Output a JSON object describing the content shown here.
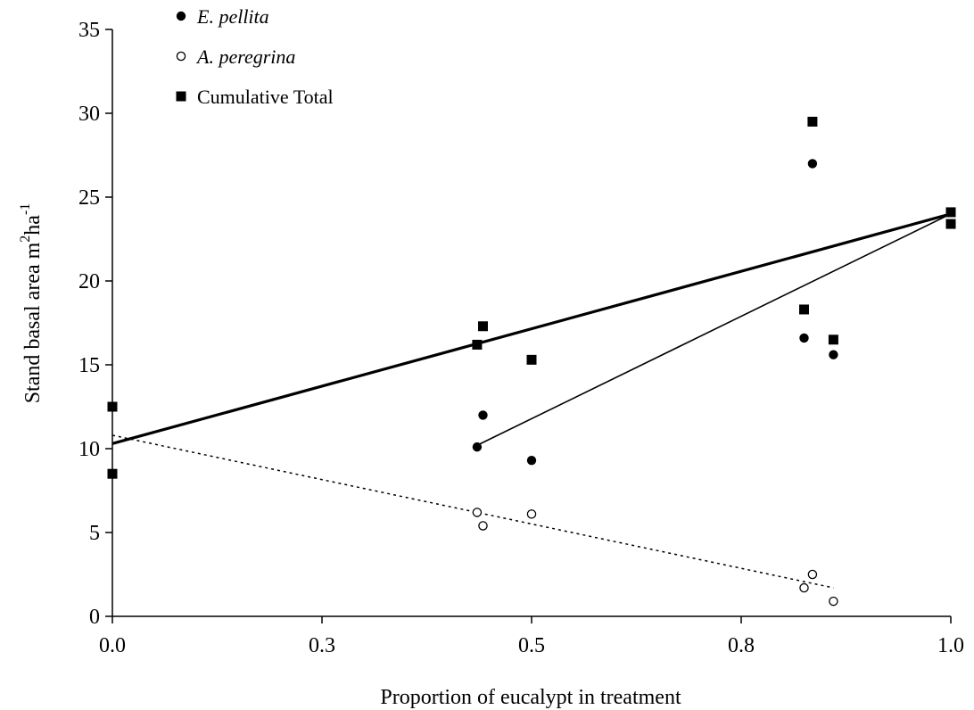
{
  "chart_data": {
    "type": "scatter",
    "title": "",
    "xlabel": "Proportion of eucalypt in treatment",
    "ylabel_main": "Stand basal area m",
    "ylabel_sup1": "2",
    "ylabel_mid": "ha",
    "ylabel_sup2": "-1",
    "xlim": [
      0,
      1
    ],
    "ylim": [
      0,
      35
    ],
    "x_ticks": [
      {
        "value": 0,
        "label": "0.0"
      },
      {
        "value": 0.25,
        "label": "0.3"
      },
      {
        "value": 0.5,
        "label": "0.5"
      },
      {
        "value": 0.75,
        "label": "0.8"
      },
      {
        "value": 1,
        "label": "1.0"
      }
    ],
    "y_ticks": [
      {
        "value": 0,
        "label": "0"
      },
      {
        "value": 5,
        "label": "5"
      },
      {
        "value": 10,
        "label": "10"
      },
      {
        "value": 15,
        "label": "15"
      },
      {
        "value": 20,
        "label": "20"
      },
      {
        "value": 25,
        "label": "25"
      },
      {
        "value": 30,
        "label": "30"
      },
      {
        "value": 35,
        "label": "35"
      }
    ],
    "grid": false,
    "legend_position": "top-left",
    "series": [
      {
        "name": "E. pellita",
        "italic": true,
        "marker": "filled-circle",
        "points": [
          [
            0.435,
            10.1
          ],
          [
            0.442,
            12.0
          ],
          [
            0.5,
            9.3
          ],
          [
            0.825,
            16.6
          ],
          [
            0.835,
            27.0
          ],
          [
            0.86,
            15.6
          ]
        ],
        "trendline": {
          "x": [
            0.435,
            1.0
          ],
          "y": [
            10.2,
            24.0
          ],
          "style": "thin"
        }
      },
      {
        "name": "A. peregrina",
        "italic": true,
        "marker": "open-circle",
        "points": [
          [
            0.435,
            6.2
          ],
          [
            0.442,
            5.4
          ],
          [
            0.5,
            6.1
          ],
          [
            0.825,
            1.7
          ],
          [
            0.835,
            2.5
          ],
          [
            0.86,
            0.9
          ]
        ],
        "trendline": {
          "x": [
            0.0,
            0.86
          ],
          "y": [
            10.8,
            1.7
          ],
          "style": "dotted"
        }
      },
      {
        "name": "Cumulative Total",
        "italic": false,
        "marker": "filled-square",
        "points": [
          [
            0.0,
            12.5
          ],
          [
            0.0,
            8.5
          ],
          [
            0.435,
            16.2
          ],
          [
            0.442,
            17.3
          ],
          [
            0.5,
            15.3
          ],
          [
            0.825,
            18.3
          ],
          [
            0.835,
            29.5
          ],
          [
            0.86,
            16.5
          ],
          [
            1.0,
            24.1
          ],
          [
            1.0,
            23.4
          ]
        ],
        "trendline": {
          "x": [
            0.0,
            1.0
          ],
          "y": [
            10.3,
            24.0
          ],
          "style": "thick"
        }
      }
    ]
  }
}
